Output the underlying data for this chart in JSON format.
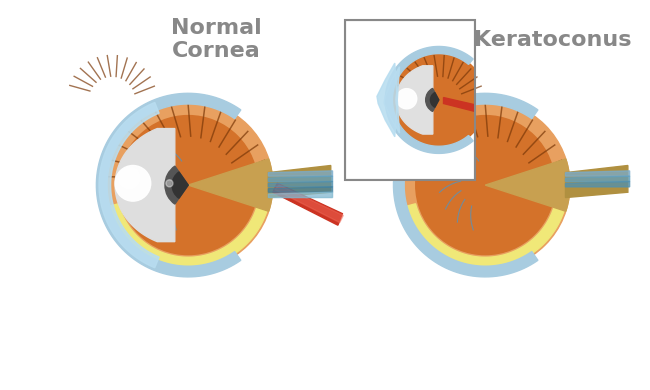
{
  "background_color": "#ffffff",
  "title_normal": "Normal\nCornea",
  "title_keratoconus": "Keratoconus",
  "title_color": "#888888",
  "title_fontsize": 16,
  "colors": {
    "iris_light": "#e8a060",
    "iris_orange": "#d4722a",
    "sclera_blue": "#a8cce0",
    "cornea_blue": "#b8ddf0",
    "lens_white": "#e8e8e8",
    "retina_yellow": "#f0e888",
    "nerve_tan": "#c8a050",
    "nerve_brown": "#b09040",
    "nerve_red": "#cc3322",
    "muscle_brown": "#8b4010",
    "vessels_blue": "#6090b0",
    "iris_dark": "#555555",
    "pupil_dark": "#333333",
    "box_border": "#888888"
  }
}
